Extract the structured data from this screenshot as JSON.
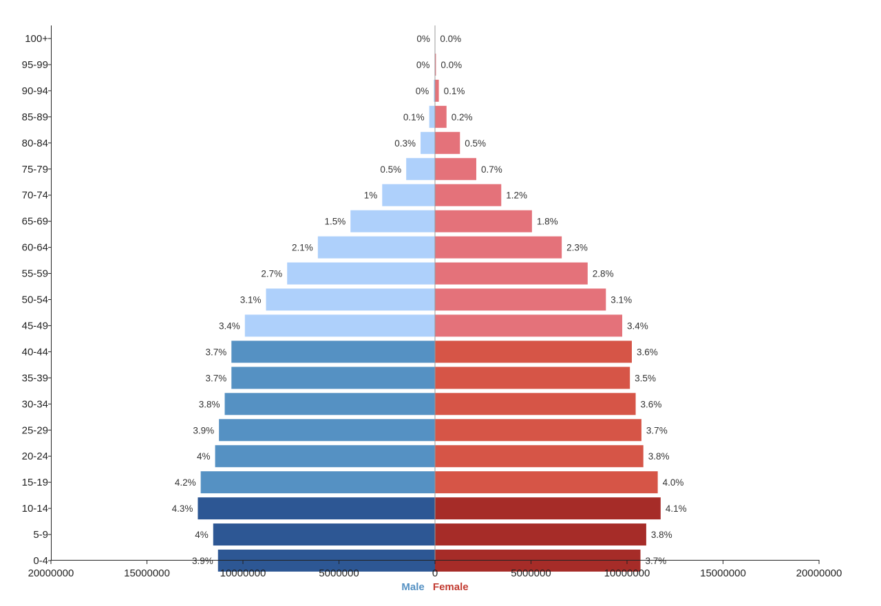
{
  "chart_data": {
    "type": "bar",
    "orientation": "horizontal-population-pyramid",
    "title": "",
    "x_range": [
      -20000000,
      20000000
    ],
    "x_ticks": [
      -20000000,
      -15000000,
      -10000000,
      -5000000,
      0,
      5000000,
      10000000,
      15000000,
      20000000
    ],
    "x_tick_labels": [
      "20000000",
      "15000000",
      "10000000",
      "5000000",
      "0",
      "5000000",
      "10000000",
      "15000000",
      "20000000"
    ],
    "categories": [
      "100+",
      "95-99",
      "90-94",
      "85-89",
      "80-84",
      "75-79",
      "70-74",
      "65-69",
      "60-64",
      "55-59",
      "50-54",
      "45-49",
      "40-44",
      "35-39",
      "30-34",
      "25-29",
      "20-24",
      "15-19",
      "10-14",
      "5-9",
      "0-4"
    ],
    "series": [
      {
        "name": "Male",
        "values": [
          5000,
          20000,
          60000,
          300000,
          750000,
          1500000,
          2750000,
          4400000,
          6100000,
          7700000,
          8800000,
          9900000,
          10600000,
          10600000,
          10950000,
          11250000,
          11450000,
          12200000,
          12350000,
          11550000,
          11300000
        ],
        "labels": [
          "0%",
          "0%",
          "0%",
          "0.1%",
          "0.3%",
          "0.5%",
          "1%",
          "1.5%",
          "2.1%",
          "2.7%",
          "3.1%",
          "3.4%",
          "3.7%",
          "3.7%",
          "3.8%",
          "3.9%",
          "4%",
          "4.2%",
          "4.3%",
          "4%",
          "3.9%"
        ]
      },
      {
        "name": "Female",
        "values": [
          15000,
          50000,
          200000,
          600000,
          1300000,
          2150000,
          3450000,
          5050000,
          6600000,
          7950000,
          8900000,
          9750000,
          10250000,
          10150000,
          10450000,
          10750000,
          10850000,
          11600000,
          11750000,
          11000000,
          10700000
        ],
        "labels": [
          "0.0%",
          "0.0%",
          "0.1%",
          "0.2%",
          "0.5%",
          "0.7%",
          "1.2%",
          "1.8%",
          "2.3%",
          "2.8%",
          "3.1%",
          "3.4%",
          "3.6%",
          "3.5%",
          "3.6%",
          "3.7%",
          "3.8%",
          "4.0%",
          "4.1%",
          "3.8%",
          "3.7%"
        ]
      }
    ],
    "colors": {
      "male_old": "#aed0fb",
      "male_working": "#5591c3",
      "male_young": "#2d5794",
      "female_old": "#e4727a",
      "female_working": "#d65547",
      "female_young": "#a62c28",
      "male_legend": "#5591c3",
      "female_legend": "#c23b31"
    },
    "color_groups": {
      "old": [
        "100+",
        "95-99",
        "90-94",
        "85-89",
        "80-84",
        "75-79",
        "70-74",
        "65-69",
        "60-64",
        "55-59",
        "50-54",
        "45-49"
      ],
      "working": [
        "40-44",
        "35-39",
        "30-34",
        "25-29",
        "20-24",
        "15-19"
      ],
      "young": [
        "10-14",
        "5-9",
        "0-4"
      ]
    },
    "legend": [
      "Male",
      "Female"
    ],
    "legend_position": "bottom-center"
  }
}
